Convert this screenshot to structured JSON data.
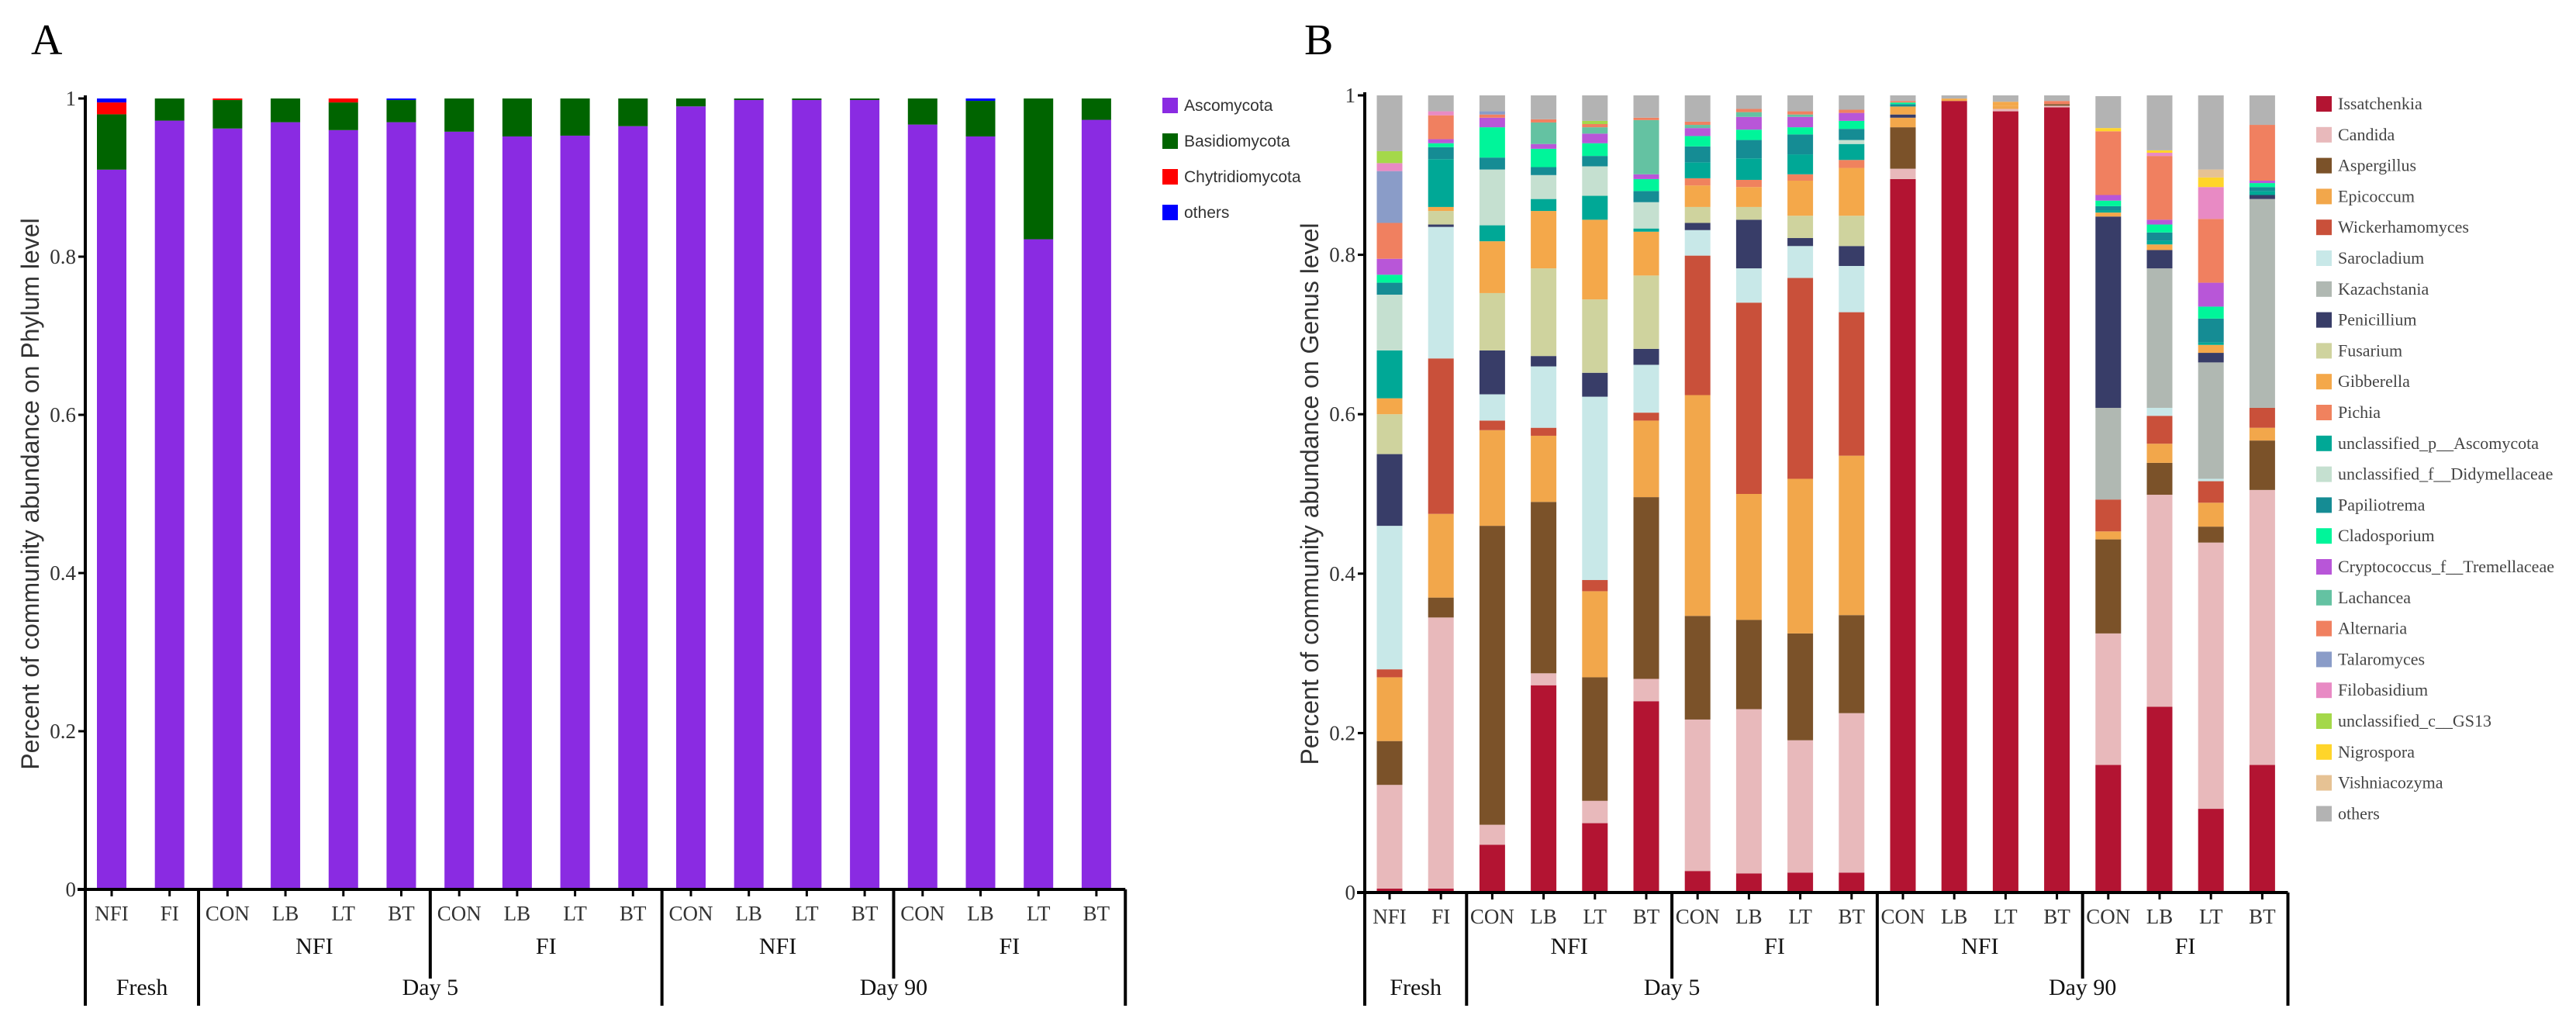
{
  "chart_data": [
    {
      "panel_label": "A",
      "type": "bar",
      "stacked": true,
      "title": "",
      "xlabel": "",
      "ylabel": "Percent of community abundance on Phylum level",
      "ylim": [
        0,
        1
      ],
      "yticks": [
        "0",
        "0.2",
        "0.4",
        "0.6",
        "0.8",
        "1"
      ],
      "grid": false,
      "legend_position": "right",
      "categories": [
        "NFI",
        "FI",
        "CON",
        "LB",
        "LT",
        "BT",
        "CON",
        "LB",
        "LT",
        "BT",
        "CON",
        "LB",
        "LT",
        "BT",
        "CON",
        "LB",
        "LT",
        "BT"
      ],
      "subgroups": [
        {
          "label": "",
          "span": 2
        },
        {
          "label": "NFI",
          "span": 4
        },
        {
          "label": "FI",
          "span": 4
        },
        {
          "label": "NFI",
          "span": 4
        },
        {
          "label": "FI",
          "span": 4
        }
      ],
      "groups": [
        {
          "label": "Fresh",
          "span": 2
        },
        {
          "label": "Day 5",
          "span": 8
        },
        {
          "label": "Day 90",
          "span": 8
        }
      ],
      "series": [
        {
          "name": "Ascomycota",
          "color": "#8a2be2",
          "values": [
            0.91,
            0.972,
            0.962,
            0.97,
            0.96,
            0.97,
            0.958,
            0.952,
            0.953,
            0.965,
            0.99,
            0.998,
            0.998,
            0.998,
            0.967,
            0.952,
            0.822,
            0.973
          ]
        },
        {
          "name": "Basidiomycota",
          "color": "#006400",
          "values": [
            0.07,
            0.028,
            0.036,
            0.03,
            0.035,
            0.028,
            0.042,
            0.048,
            0.047,
            0.035,
            0.01,
            0.002,
            0.002,
            0.002,
            0.033,
            0.045,
            0.178,
            0.027
          ]
        },
        {
          "name": "Chytridiomycota",
          "color": "#ff0000",
          "values": [
            0.015,
            0,
            0.002,
            0,
            0.005,
            0,
            0,
            0,
            0,
            0,
            0,
            0,
            0,
            0,
            0,
            0,
            0,
            0
          ]
        },
        {
          "name": "others",
          "color": "#0000ff",
          "values": [
            0.005,
            0,
            0,
            0,
            0,
            0.002,
            0,
            0,
            0,
            0,
            0,
            0,
            0,
            0,
            0,
            0.003,
            0,
            0
          ]
        }
      ]
    },
    {
      "panel_label": "B",
      "type": "bar",
      "stacked": true,
      "title": "",
      "xlabel": "",
      "ylabel": "Percent of community abundance on Genus level",
      "ylim": [
        0,
        1
      ],
      "yticks": [
        "0",
        "0.2",
        "0.4",
        "0.6",
        "0.8",
        "1"
      ],
      "grid": false,
      "legend_position": "right",
      "categories": [
        "NFI",
        "FI",
        "CON",
        "LB",
        "LT",
        "BT",
        "CON",
        "LB",
        "LT",
        "BT",
        "CON",
        "LB",
        "LT",
        "BT",
        "CON",
        "LB",
        "LT",
        "BT"
      ],
      "subgroups": [
        {
          "label": "",
          "span": 2
        },
        {
          "label": "NFI",
          "span": 4
        },
        {
          "label": "FI",
          "span": 4
        },
        {
          "label": "NFI",
          "span": 4
        },
        {
          "label": "FI",
          "span": 4
        }
      ],
      "groups": [
        {
          "label": "Fresh",
          "span": 2
        },
        {
          "label": "Day 5",
          "span": 8
        },
        {
          "label": "Day 90",
          "span": 8
        }
      ],
      "series": [
        {
          "name": "Issatchenkia",
          "color": "#b31432",
          "values": [
            0.005,
            0.005,
            0.06,
            0.26,
            0.087,
            0.24,
            0.027,
            0.024,
            0.025,
            0.025,
            0.895,
            0.993,
            0.98,
            0.985,
            0.16,
            0.233,
            0.105,
            0.16
          ]
        },
        {
          "name": "Candida",
          "color": "#e8b9bb",
          "values": [
            0.13,
            0.34,
            0.025,
            0.015,
            0.028,
            0.028,
            0.19,
            0.206,
            0.166,
            0.2,
            0.013,
            0,
            0.003,
            0.002,
            0.165,
            0.266,
            0.334,
            0.345
          ]
        },
        {
          "name": "Aspergillus",
          "color": "#7b5229",
          "values": [
            0.055,
            0.025,
            0.375,
            0.215,
            0.155,
            0.228,
            0.13,
            0.112,
            0.134,
            0.123,
            0.052,
            0,
            0,
            0.002,
            0.118,
            0.04,
            0.02,
            0.062
          ]
        },
        {
          "name": "Epicoccum",
          "color": "#f2a74b",
          "values": [
            0.08,
            0.105,
            0.12,
            0.083,
            0.108,
            0.096,
            0.277,
            0.158,
            0.194,
            0.2,
            0.012,
            0,
            0.004,
            0,
            0.01,
            0.024,
            0.03,
            0.016
          ]
        },
        {
          "name": "Wickerhamomyces",
          "color": "#c9503a",
          "values": [
            0.01,
            0.195,
            0.012,
            0.01,
            0.014,
            0.01,
            0.175,
            0.24,
            0.252,
            0.18,
            0,
            0,
            0,
            0,
            0.04,
            0.035,
            0.027,
            0.025
          ]
        },
        {
          "name": "Sarocladium",
          "color": "#c8e8e8",
          "values": [
            0.18,
            0.165,
            0.033,
            0.077,
            0.23,
            0.06,
            0.032,
            0.043,
            0.04,
            0.058,
            0,
            0,
            0,
            0,
            0,
            0.01,
            0.003,
            0
          ]
        },
        {
          "name": "Kazachstania",
          "color": "#b0b8b2",
          "values": [
            0,
            0,
            0,
            0,
            0,
            0,
            0,
            0,
            0,
            0,
            0,
            0,
            0,
            0,
            0.115,
            0.175,
            0.146,
            0.262
          ]
        },
        {
          "name": "Penicillium",
          "color": "#383d68",
          "values": [
            0.09,
            0.003,
            0.055,
            0.013,
            0.03,
            0.02,
            0.009,
            0.061,
            0.01,
            0.025,
            0.004,
            0,
            0,
            0,
            0.24,
            0.023,
            0.012,
            0.005
          ]
        },
        {
          "name": "Fusarium",
          "color": "#cfd39e",
          "values": [
            0.05,
            0.017,
            0.072,
            0.11,
            0.092,
            0.092,
            0.02,
            0.016,
            0.028,
            0.038,
            0,
            0,
            0,
            0,
            0,
            0,
            0,
            0
          ]
        },
        {
          "name": "Gibberella",
          "color": "#f4a84a",
          "values": [
            0.02,
            0.005,
            0.065,
            0.072,
            0.1,
            0.055,
            0.027,
            0.025,
            0.044,
            0.06,
            0.01,
            0.003,
            0.005,
            0,
            0.005,
            0.007,
            0.01,
            0
          ]
        },
        {
          "name": "Pichia",
          "color": "#f0825e",
          "values": [
            0,
            0,
            0,
            0,
            0,
            0,
            0.009,
            0.009,
            0.008,
            0.01,
            0,
            0,
            0,
            0,
            0,
            0,
            0,
            0
          ]
        },
        {
          "name": "unclassified_p__Ascomycota",
          "color": "#00a896",
          "values": [
            0.06,
            0.06,
            0.02,
            0.015,
            0.03,
            0.004,
            0.02,
            0.027,
            0.025,
            0.02,
            0,
            0,
            0,
            0,
            0.003,
            0.005,
            0.003,
            0.005
          ]
        },
        {
          "name": "unclassified_f__Didymellaceae",
          "color": "#c5e0d0",
          "values": [
            0.07,
            0,
            0.07,
            0.03,
            0.037,
            0.033,
            0,
            0,
            0,
            0.005,
            0,
            0,
            0,
            0,
            0,
            0,
            0,
            0
          ]
        },
        {
          "name": "Papiliotrema",
          "color": "#158c94",
          "values": [
            0.015,
            0.015,
            0.015,
            0.01,
            0.013,
            0.014,
            0.02,
            0.023,
            0.025,
            0.014,
            0.003,
            0,
            0,
            0,
            0.005,
            0.01,
            0.03,
            0.005
          ]
        },
        {
          "name": "Cladosporium",
          "color": "#00f59a",
          "values": [
            0.01,
            0.005,
            0.038,
            0.023,
            0.016,
            0.015,
            0.013,
            0.013,
            0.009,
            0.01,
            0.002,
            0,
            0,
            0,
            0.007,
            0.01,
            0.015,
            0.005
          ]
        },
        {
          "name": "Cryptococcus_f__Tremellaceae",
          "color": "#b856d8",
          "values": [
            0.02,
            0.005,
            0.012,
            0.006,
            0.012,
            0.006,
            0.01,
            0.016,
            0.013,
            0.01,
            0,
            0,
            0,
            0,
            0.007,
            0.006,
            0.03,
            0.003
          ]
        },
        {
          "name": "Lachancea",
          "color": "#64c2a2",
          "values": [
            0,
            0,
            0,
            0.027,
            0.008,
            0.068,
            0.004,
            0.006,
            0.003,
            0,
            0,
            0,
            0,
            0,
            0,
            0,
            0,
            0
          ]
        },
        {
          "name": "Alternaria",
          "color": "#f08060",
          "values": [
            0.045,
            0.03,
            0.004,
            0.004,
            0.004,
            0.003,
            0.004,
            0.004,
            0.004,
            0.004,
            0.002,
            0,
            0,
            0.004,
            0.08,
            0.08,
            0.08,
            0.07
          ]
        },
        {
          "name": "Talaromyces",
          "color": "#8a9cc8",
          "values": [
            0.065,
            0,
            0.004,
            0,
            0,
            0,
            0,
            0,
            0,
            0,
            0,
            0,
            0,
            0,
            0,
            0,
            0,
            0
          ]
        },
        {
          "name": "Filobasidium",
          "color": "#e88ac4",
          "values": [
            0.01,
            0.005,
            0,
            0,
            0,
            0,
            0,
            0,
            0,
            0,
            0,
            0,
            0,
            0,
            0,
            0.004,
            0.04,
            0
          ]
        },
        {
          "name": "unclassified_c__GS13",
          "color": "#a4d84a",
          "values": [
            0.015,
            0,
            0,
            0,
            0.004,
            0,
            0,
            0,
            0,
            0,
            0,
            0,
            0,
            0,
            0,
            0,
            0,
            0
          ]
        },
        {
          "name": "Nigrospora",
          "color": "#ffd52a",
          "values": [
            0,
            0,
            0,
            0,
            0,
            0,
            0,
            0,
            0,
            0,
            0,
            0,
            0,
            0,
            0.004,
            0.003,
            0.012,
            0
          ]
        },
        {
          "name": "Vishniacozyma",
          "color": "#e6c294",
          "values": [
            0,
            0,
            0,
            0,
            0,
            0,
            0,
            0,
            0,
            0,
            0,
            0,
            0,
            0,
            0,
            0,
            0.01,
            0
          ]
        },
        {
          "name": "others",
          "color": "#b3b3b3",
          "values": [
            0.07,
            0.02,
            0.02,
            0.03,
            0.032,
            0.028,
            0.033,
            0.017,
            0.02,
            0.018,
            0.007,
            0.004,
            0.008,
            0.007,
            0.04,
            0.069,
            0.093,
            0.037
          ]
        }
      ]
    }
  ]
}
